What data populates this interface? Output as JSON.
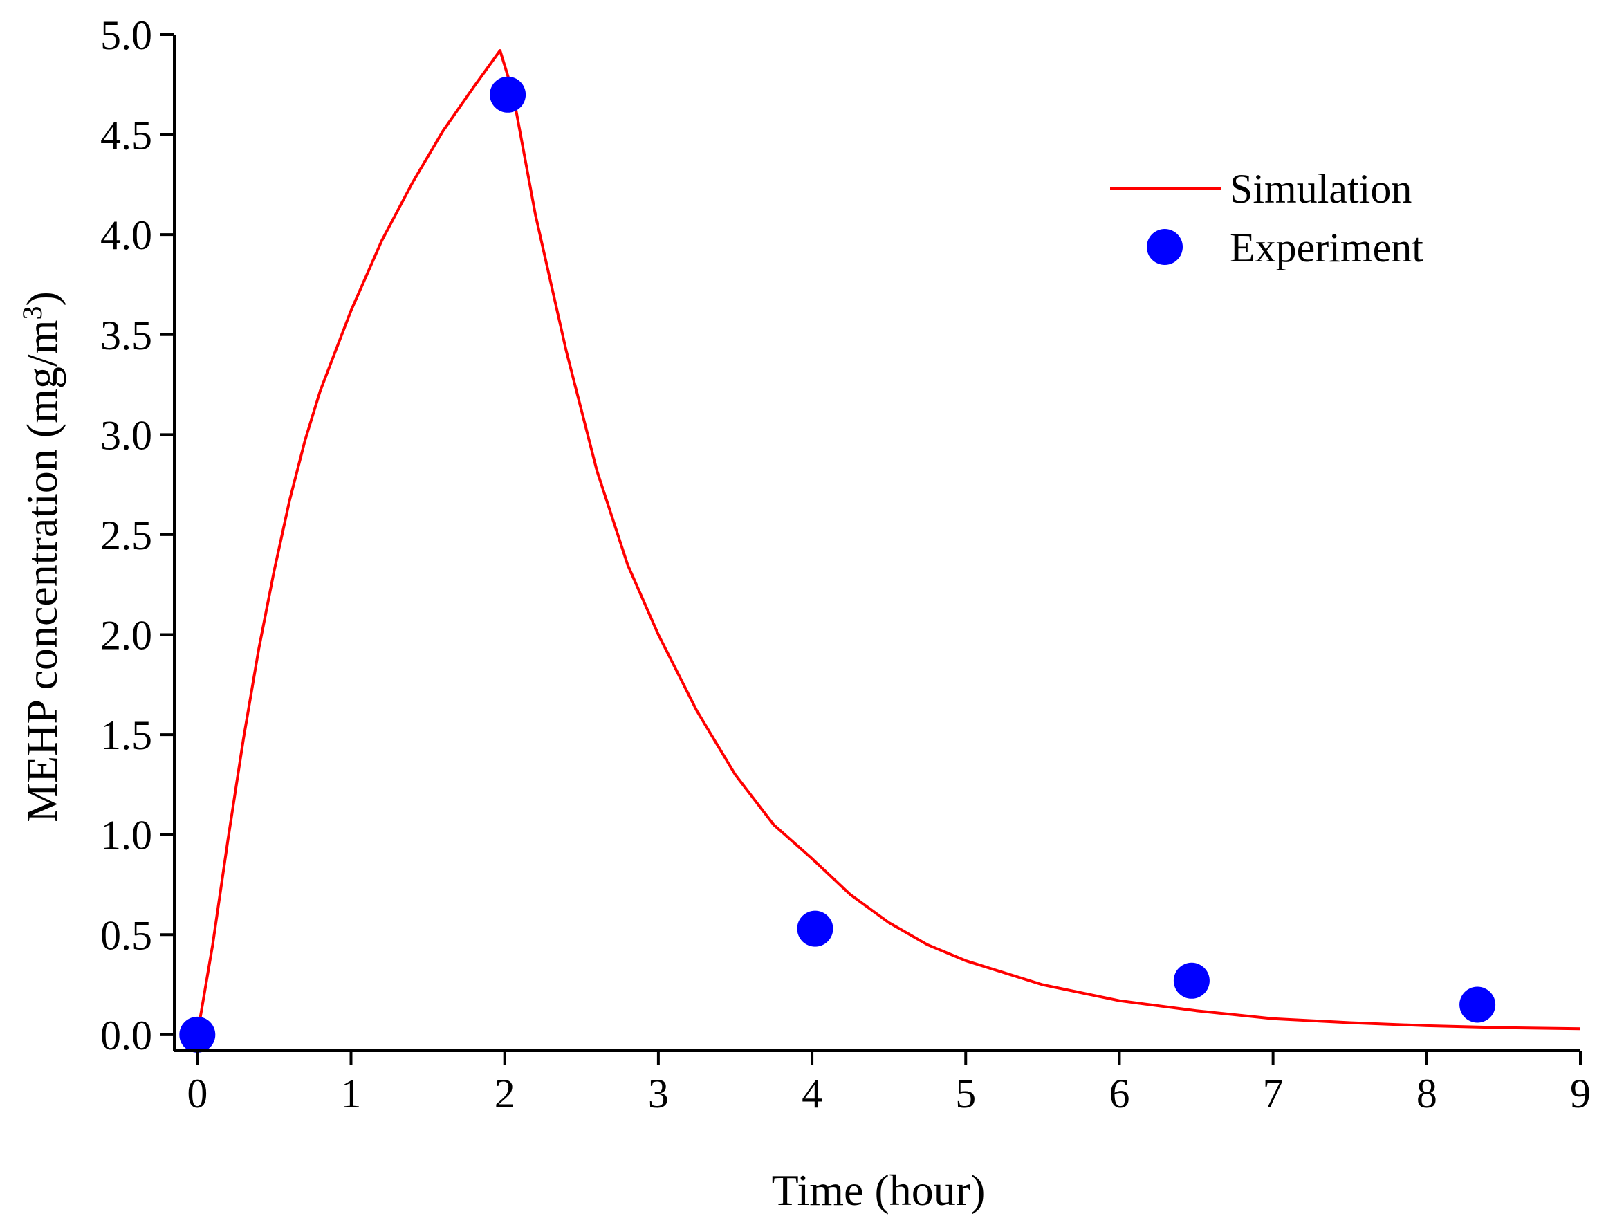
{
  "chart_data": {
    "type": "line",
    "title": "",
    "xlabel": "Time (hour)",
    "ylabel_main": "MEHP concentration (mg/m",
    "ylabel_sup": "3",
    "ylabel_close": ")",
    "xlim": [
      -0.15,
      9
    ],
    "ylim": [
      -0.08,
      5.0
    ],
    "x_ticks": [
      0,
      1,
      2,
      3,
      4,
      5,
      6,
      7,
      8,
      9
    ],
    "x_tick_labels": [
      "0",
      "1",
      "2",
      "3",
      "4",
      "5",
      "6",
      "7",
      "8",
      "9"
    ],
    "y_ticks": [
      0,
      0.5,
      1.0,
      1.5,
      2.0,
      2.5,
      3.0,
      3.5,
      4.0,
      4.5,
      5.0
    ],
    "y_tick_labels": [
      "0.0",
      "0.5",
      "1.0",
      "1.5",
      "2.0",
      "2.5",
      "3.0",
      "3.5",
      "4.0",
      "4.5",
      "5.0"
    ],
    "legend_position": "top-right",
    "series": [
      {
        "name": "Simulation",
        "kind": "line",
        "color": "#ff0000",
        "x": [
          0,
          0.1,
          0.2,
          0.3,
          0.4,
          0.5,
          0.6,
          0.7,
          0.8,
          1.0,
          1.2,
          1.4,
          1.6,
          1.8,
          1.97,
          2.05,
          2.2,
          2.4,
          2.6,
          2.8,
          3.0,
          3.25,
          3.5,
          3.75,
          4.0,
          4.25,
          4.5,
          4.75,
          5.0,
          5.5,
          6.0,
          6.5,
          7.0,
          7.5,
          8.0,
          8.5,
          9.0
        ],
        "y": [
          0,
          0.45,
          0.98,
          1.48,
          1.93,
          2.32,
          2.67,
          2.97,
          3.22,
          3.62,
          3.97,
          4.26,
          4.52,
          4.74,
          4.92,
          4.72,
          4.1,
          3.42,
          2.82,
          2.35,
          2.0,
          1.62,
          1.3,
          1.05,
          0.88,
          0.7,
          0.56,
          0.45,
          0.37,
          0.25,
          0.17,
          0.12,
          0.08,
          0.06,
          0.045,
          0.035,
          0.03
        ]
      },
      {
        "name": "Experiment",
        "kind": "scatter",
        "color": "#0000ff",
        "x": [
          0,
          2.02,
          4.02,
          6.47,
          8.33
        ],
        "y": [
          0.0,
          4.7,
          0.53,
          0.27,
          0.15
        ]
      }
    ]
  }
}
